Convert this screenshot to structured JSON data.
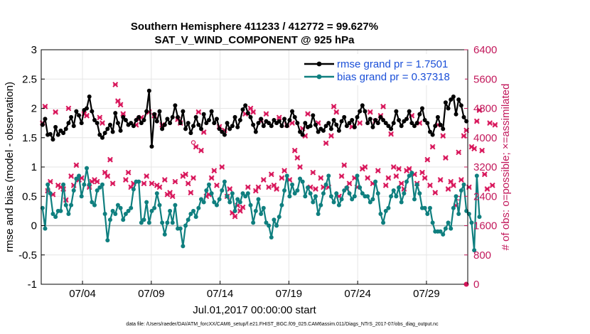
{
  "chart_data": {
    "type": "line",
    "title_line1": "Southern Hemisphere 411233 / 412772 = 99.627%",
    "title_line2": "SAT_V_WIND_COMPONENT @ 925 hPa",
    "xlabel": "Jul.01,2017 00:00:00 start",
    "ylabel_left": "rmse and bias (model - observation)",
    "ylabel_right": "# of obs: o=possible; ×=assimilated",
    "ylim_left": [
      -1,
      3
    ],
    "yticks_left": [
      "-1",
      "-0.5",
      "0",
      "0.5",
      "1",
      "1.5",
      "2",
      "2.5",
      "3"
    ],
    "ylim_right": [
      0,
      6400
    ],
    "yticks_right": [
      "0",
      "800",
      "1600",
      "2400",
      "3200",
      "4000",
      "4800",
      "5600",
      "6400"
    ],
    "xlim": [
      1,
      32
    ],
    "xticks": [
      {
        "day": 4,
        "label": "07/04"
      },
      {
        "day": 9,
        "label": "07/09"
      },
      {
        "day": 14,
        "label": "07/14"
      },
      {
        "day": 19,
        "label": "07/19"
      },
      {
        "day": 24,
        "label": "07/24"
      },
      {
        "day": 29,
        "label": "07/29"
      }
    ],
    "grid": true,
    "legend": [
      "rmse grand pr = 1.7501",
      "bias grand pr = 0.37318"
    ],
    "colors": {
      "rmse": "#000000",
      "bias": "#0f7f7f",
      "obs": "#d8155a",
      "zero_line": "#b3b3b3",
      "right_axis": "#c2185b",
      "legend_text": "#1a4fd8"
    },
    "series": [
      {
        "name": "rmse",
        "values": [
          1.72,
          1.82,
          1.55,
          1.56,
          1.47,
          1.68,
          1.55,
          1.62,
          1.58,
          1.65,
          1.75,
          1.85,
          1.7,
          1.95,
          1.88,
          1.75,
          1.97,
          2.0,
          2.2,
          1.95,
          1.8,
          1.75,
          1.55,
          1.5,
          1.58,
          1.65,
          1.72,
          1.6,
          1.92,
          1.75,
          1.62,
          1.85,
          1.8,
          1.72,
          1.75,
          1.7,
          1.8,
          1.85,
          1.75,
          1.8,
          1.95,
          2.3,
          1.35,
          1.9,
          1.78,
          1.95,
          1.65,
          1.72,
          1.82,
          1.75,
          1.85,
          2.05,
          1.85,
          1.75,
          1.95,
          1.65,
          1.75,
          1.58,
          1.7,
          1.85,
          1.72,
          1.65,
          1.9,
          1.75,
          1.8,
          1.95,
          1.75,
          1.82,
          1.65,
          1.6,
          1.55,
          1.75,
          1.65,
          1.7,
          1.85,
          1.68,
          1.8,
          1.98,
          2.05,
          1.92,
          1.85,
          1.72,
          1.6,
          1.75,
          1.82,
          1.7,
          1.78,
          1.75,
          1.7,
          1.8,
          1.75,
          1.78,
          1.7,
          1.82,
          1.7,
          1.8,
          1.95,
          1.85,
          1.75,
          1.6,
          1.55,
          1.75,
          1.68,
          1.7,
          1.88,
          1.72,
          1.6,
          1.65,
          1.62,
          1.7,
          1.75,
          1.65,
          1.8,
          1.72,
          1.62,
          1.78,
          1.85,
          1.7,
          1.75,
          1.8,
          1.68,
          1.85,
          1.95,
          2.05,
          1.95,
          1.75,
          1.82,
          1.68,
          1.8,
          1.75,
          1.85,
          1.8,
          1.75,
          1.7,
          1.65,
          1.75,
          1.95,
          1.8,
          1.7,
          1.78,
          1.82,
          1.95,
          1.75,
          1.7,
          1.75,
          1.9,
          2.0,
          1.8,
          1.75,
          1.6,
          1.55,
          1.7,
          1.85,
          1.72,
          1.65,
          2.1,
          2.0,
          2.15,
          2.2,
          1.9,
          2.15,
          2.05,
          1.85,
          1.78
        ]
      },
      {
        "name": "bias",
        "values": [
          0.3,
          -0.05,
          0.7,
          0.55,
          0.2,
          0.15,
          0.25,
          0.25,
          0.7,
          0.35,
          0.2,
          0.35,
          0.6,
          0.8,
          0.85,
          0.5,
          0.7,
          0.98,
          0.7,
          0.4,
          0.35,
          0.6,
          0.65,
          0.7,
          0.2,
          -0.25,
          0.1,
          0.25,
          0.2,
          0.35,
          0.3,
          0.1,
          0.2,
          0.25,
          0.3,
          0.62,
          0.75,
          0.75,
          0.05,
          0.1,
          0.4,
          0.05,
          0.25,
          0.3,
          0.55,
          0.35,
          0.05,
          -0.15,
          0.05,
          0.25,
          0.05,
          0.35,
          -0.05,
          -0.05,
          -0.35,
          0.0,
          0.1,
          0.2,
          0.25,
          0.15,
          0.3,
          0.45,
          0.4,
          0.6,
          0.7,
          0.55,
          0.4,
          0.35,
          0.45,
          0.6,
          0.75,
          0.5,
          0.4,
          0.55,
          0.25,
          0.45,
          0.4,
          0.55,
          0.5,
          0.55,
          0.35,
          0.05,
          0.25,
          0.45,
          0.2,
          0.3,
          0.05,
          0.0,
          -0.2,
          0.1,
          0.0,
          0.15,
          0.35,
          0.6,
          0.85,
          0.5,
          0.7,
          0.55,
          0.6,
          0.8,
          0.75,
          0.5,
          0.65,
          0.55,
          0.4,
          0.5,
          0.2,
          0.35,
          0.55,
          0.7,
          0.85,
          0.5,
          0.4,
          0.55,
          0.35,
          0.45,
          0.6,
          0.65,
          0.55,
          0.45,
          0.5,
          0.85,
          0.65,
          0.55,
          0.5,
          0.5,
          0.4,
          0.45,
          0.75,
          0.55,
          0.2,
          0.05,
          0.25,
          0.3,
          0.5,
          0.6,
          0.5,
          0.65,
          0.4,
          0.55,
          0.75,
          0.85,
          0.9,
          0.45,
          0.7,
          0.55,
          0.3,
          0.3,
          0.2,
          0.3,
          0.05,
          -0.1,
          -0.1,
          -0.1,
          -0.15,
          -0.05,
          0.05,
          -0.05,
          0.3,
          0.5,
          0.2,
          0.6,
          0.7,
          0.25,
          0.2,
          0.05,
          -0.42,
          0.85,
          0.15
        ]
      },
      {
        "name": "obs_assimilated",
        "values": [
          4400,
          4850,
          2550,
          2800,
          2450,
          4700,
          2700,
          2650,
          2600,
          2300,
          4800,
          2950,
          2700,
          3250,
          2850,
          2900,
          4650,
          4600,
          2650,
          2800,
          2850,
          2800,
          4550,
          4400,
          3050,
          2950,
          3400,
          2750,
          5450,
          5000,
          4900,
          4650,
          2850,
          3050,
          2650,
          2750,
          4350,
          4500,
          4550,
          2750,
          2950,
          4700,
          2750,
          4600,
          2700,
          2650,
          4350,
          2850,
          2450,
          2500,
          2400,
          2800,
          4500,
          4400,
          2950,
          3000,
          2750,
          2500,
          2900,
          3750,
          4700,
          3650,
          4150,
          2400,
          2450,
          2900,
          3100,
          2700,
          4300,
          3200,
          4200,
          2400,
          2600,
          1950,
          1850,
          2150,
          2000,
          2100,
          4650,
          2650,
          4800,
          4700,
          2550,
          2650,
          4450,
          2850,
          4650,
          2650,
          3000,
          2700,
          2600,
          4550,
          2900,
          3100,
          4350,
          2850,
          4400,
          3650,
          3450,
          3200,
          4250,
          4050,
          4650,
          2650,
          3050,
          2600,
          4400,
          2900,
          2650,
          3850,
          2650,
          4050,
          4850,
          4700,
          2400,
          2950,
          3250,
          2600,
          2750,
          4300,
          2900,
          2650,
          4400,
          3150,
          3200,
          2900,
          4700,
          2750,
          4450,
          3100,
          4600,
          4850,
          2700,
          2900,
          4100,
          3200,
          2950,
          3150,
          2750,
          2600,
          3100,
          3150,
          4600,
          3000,
          2750,
          4400,
          3050,
          2900,
          3400,
          2700,
          3750,
          2500,
          4350,
          2850,
          4050,
          3450,
          2600,
          2800,
          2700,
          2150,
          3600,
          2850,
          4050,
          4200,
          2650,
          3750,
          3700,
          4450,
          4750,
          3650,
          3000,
          2600,
          4400,
          2700,
          4350
        ]
      }
    ]
  },
  "footer": "data file: /Users/raeder/DAI/ATM_forcXX/CAM6_setup/f.e21.FHIST_BGC.f09_025.CAM6assim.011/Diags_NTrS_2017-07/obs_diag_output.nc"
}
